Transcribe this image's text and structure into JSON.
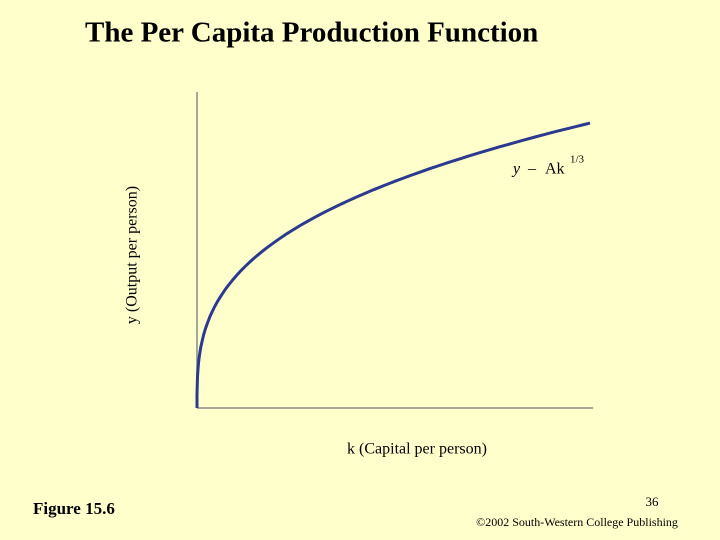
{
  "title": "The Per Capita Production Function",
  "figure": {
    "y_axis_label": "y (Output per person)",
    "x_axis_label": "k (Capital per person)",
    "equation": {
      "lhs": "y",
      "sign": "–",
      "rhs": "Ak",
      "exponent": "1/3"
    }
  },
  "footer": {
    "figure_label": "Figure 15.6",
    "page_number": "36",
    "copyright": "©2002 South-Western College Publishing"
  }
}
